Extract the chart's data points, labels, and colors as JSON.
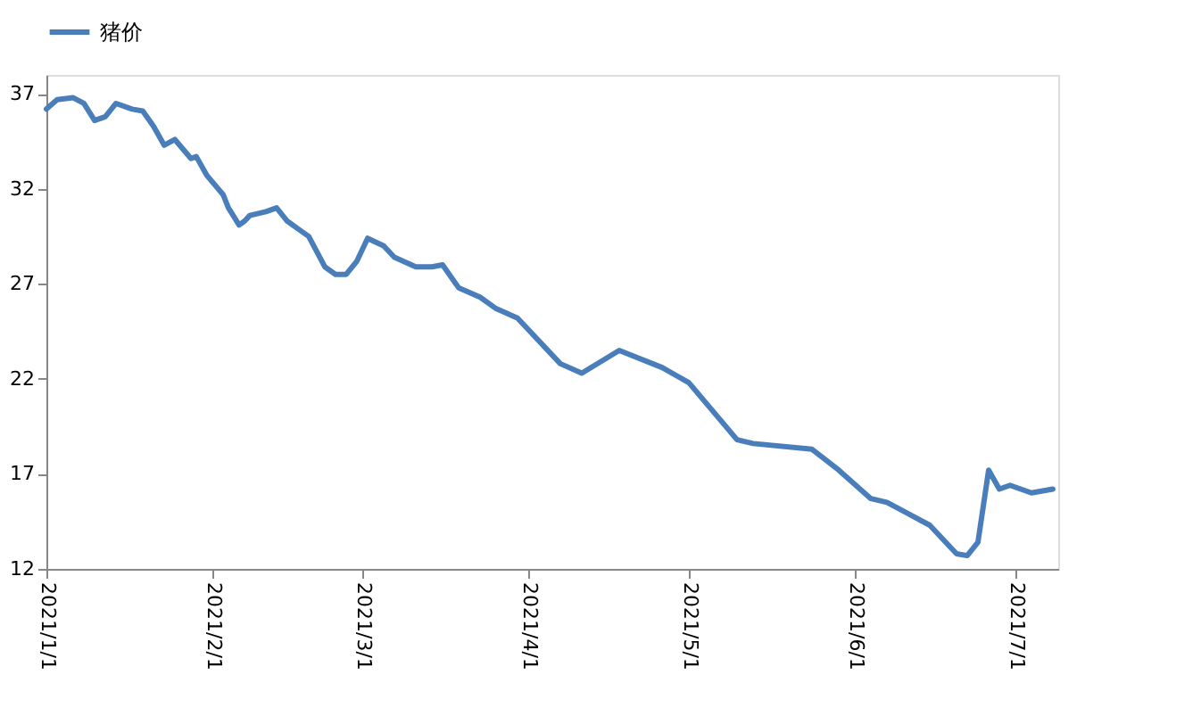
{
  "chart_data": {
    "type": "line",
    "legend": "top",
    "grid": false,
    "x": [
      "2021-01-01",
      "2021-01-03",
      "2021-01-06",
      "2021-01-08",
      "2021-01-10",
      "2021-01-12",
      "2021-01-14",
      "2021-01-17",
      "2021-01-19",
      "2021-01-21",
      "2021-01-23",
      "2021-01-25",
      "2021-01-28",
      "2021-01-29",
      "2021-01-31",
      "2021-02-03",
      "2021-02-04",
      "2021-02-06",
      "2021-02-07",
      "2021-02-08",
      "2021-02-11",
      "2021-02-13",
      "2021-02-15",
      "2021-02-17",
      "2021-02-19",
      "2021-02-22",
      "2021-02-24",
      "2021-02-26",
      "2021-02-28",
      "2021-03-02",
      "2021-03-05",
      "2021-03-07",
      "2021-03-11",
      "2021-03-14",
      "2021-03-16",
      "2021-03-19",
      "2021-03-23",
      "2021-03-26",
      "2021-03-30",
      "2021-04-07",
      "2021-04-11",
      "2021-04-18",
      "2021-04-26",
      "2021-05-01",
      "2021-05-10",
      "2021-05-13",
      "2021-05-24",
      "2021-05-29",
      "2021-06-04",
      "2021-06-07",
      "2021-06-15",
      "2021-06-20",
      "2021-06-22",
      "2021-06-24",
      "2021-06-26",
      "2021-06-28",
      "2021-06-30",
      "2021-07-04",
      "2021-07-08"
    ],
    "series": [
      {
        "name": "猪价",
        "color": "#4a7ebb",
        "values": [
          36.2,
          36.7,
          36.8,
          36.5,
          35.6,
          35.8,
          36.5,
          36.2,
          36.1,
          35.3,
          34.3,
          34.6,
          33.6,
          33.7,
          32.7,
          31.7,
          31.0,
          30.1,
          30.3,
          30.6,
          30.8,
          31.0,
          30.3,
          29.9,
          29.5,
          27.9,
          27.5,
          27.5,
          28.2,
          29.4,
          29.0,
          28.4,
          27.9,
          27.9,
          28.0,
          26.8,
          26.3,
          25.7,
          25.2,
          22.8,
          22.3,
          23.5,
          22.6,
          21.8,
          18.8,
          18.6,
          18.3,
          17.2,
          15.7,
          15.5,
          14.3,
          12.8,
          12.7,
          13.4,
          17.2,
          16.2,
          16.4,
          16.0,
          16.2
        ]
      }
    ],
    "xlim": [
      "2021-01-01",
      "2021-07-09"
    ],
    "xticks": [
      {
        "value": "2021-01-01",
        "label": "2021/1/1"
      },
      {
        "value": "2021-02-01",
        "label": "2021/2/1"
      },
      {
        "value": "2021-03-01",
        "label": "2021/3/1"
      },
      {
        "value": "2021-04-01",
        "label": "2021/4/1"
      },
      {
        "value": "2021-05-01",
        "label": "2021/5/1"
      },
      {
        "value": "2021-06-01",
        "label": "2021/6/1"
      },
      {
        "value": "2021-07-01",
        "label": "2021/7/1"
      }
    ],
    "ylim": [
      12,
      38
    ],
    "yticks": [
      12,
      17,
      22,
      27,
      32,
      37
    ]
  }
}
